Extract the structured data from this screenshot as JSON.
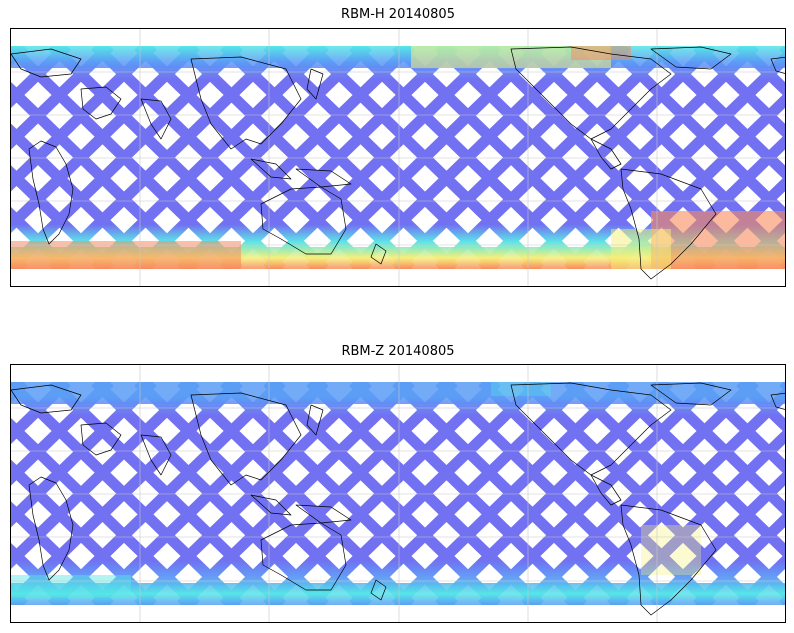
{
  "panels": [
    {
      "title": "RBM-H 20140805",
      "south_pole_heat": 1.0,
      "north_pole_heat": 0.55
    },
    {
      "title": "RBM-Z 20140805",
      "south_pole_heat": 0.45,
      "north_pole_heat": 0.35
    }
  ],
  "colors": {
    "low": "#6a6af2",
    "low_mid": "#5b9cf6",
    "mid": "#55e6e6",
    "mid_high": "#a8f58c",
    "high": "#f5f07a",
    "very_high": "#f88a5e",
    "coast": "#000000",
    "grid": "#c8c8c8"
  }
}
